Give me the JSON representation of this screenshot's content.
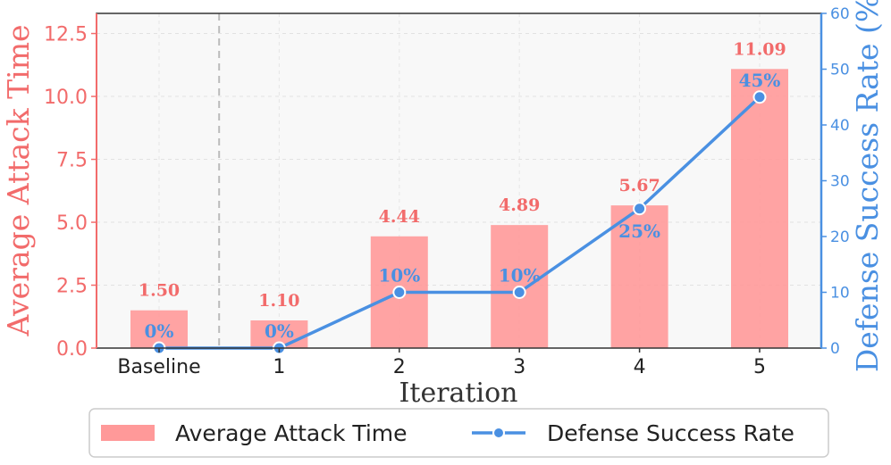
{
  "chart_data": {
    "type": "bar",
    "categories": [
      "Baseline",
      "1",
      "2",
      "3",
      "4",
      "5"
    ],
    "xlabel": "Iteration",
    "ylabel_left": "Average Attack Time",
    "ylabel_right": "Defense Success Rate (%)",
    "ylim_left": [
      0,
      13.3
    ],
    "ylim_right": [
      0,
      60
    ],
    "yticks_left": [
      "0.0",
      "2.5",
      "5.0",
      "7.5",
      "10.0",
      "12.5"
    ],
    "yticks_right": [
      "0",
      "10",
      "20",
      "30",
      "40",
      "50",
      "60"
    ],
    "grid": true,
    "series": [
      {
        "name": "Average Attack Time",
        "kind": "bar",
        "axis": "left",
        "values": [
          1.5,
          1.1,
          4.44,
          4.89,
          5.67,
          11.09
        ],
        "labels": [
          "1.50",
          "1.10",
          "4.44",
          "4.89",
          "5.67",
          "11.09"
        ]
      },
      {
        "name": "Defense Success Rate",
        "kind": "line",
        "axis": "right",
        "values": [
          0,
          0,
          10,
          10,
          25,
          45
        ],
        "labels": [
          "0%",
          "0%",
          "10%",
          "10%",
          "25%",
          "45%"
        ]
      }
    ],
    "legend": {
      "position": "bottom",
      "entries": [
        "Average Attack Time",
        "Defense Success Rate"
      ]
    },
    "colors": {
      "bar": "#ff9999",
      "bar_label": "#f26b6b",
      "left_axis": "#f26b6b",
      "line": "#4a90e2",
      "right_axis": "#4a90e2",
      "baseline_divider": "#bbbbbb"
    }
  }
}
